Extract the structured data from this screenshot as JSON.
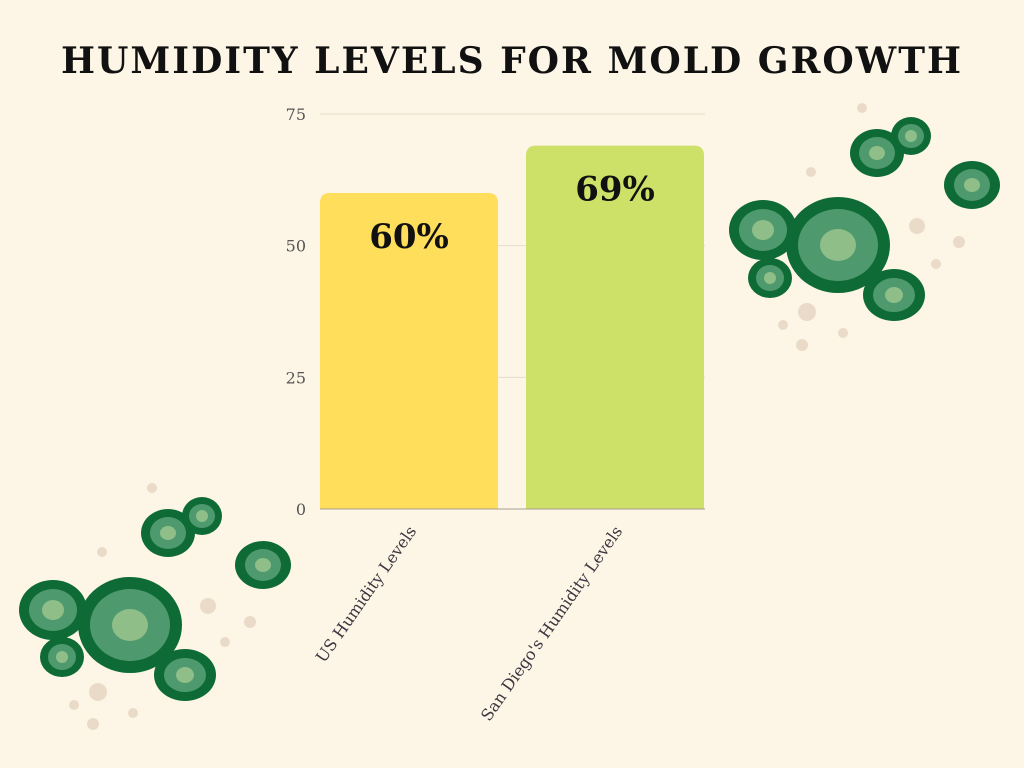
{
  "chart_data": {
    "type": "bar",
    "title": "HUMIDITY LEVELS FOR MOLD GROWTH",
    "categories": [
      "US Humidity Levels",
      "San Diego's Humidity Levels"
    ],
    "values": [
      60,
      69
    ],
    "data_labels": [
      "60%",
      "69%"
    ],
    "bar_colors": [
      "#fede5a",
      "#cde068"
    ],
    "ylim": [
      0,
      75
    ],
    "yticks": [
      0,
      25,
      50,
      75
    ],
    "xlabel": "",
    "ylabel": "",
    "grid": true,
    "legend": "none"
  },
  "colors": {
    "background": "#fdf6e6",
    "text": "#111111",
    "axis_text": "#555555",
    "grid": "#e6dccb",
    "mold_dark": "#0f6b35",
    "mold_mid": "#4e9a6e",
    "mold_light": "#8fbe88",
    "spore": "#eadbc8"
  },
  "decor": {
    "icon_left": "mold-cluster-icon",
    "icon_right": "mold-cluster-icon"
  }
}
